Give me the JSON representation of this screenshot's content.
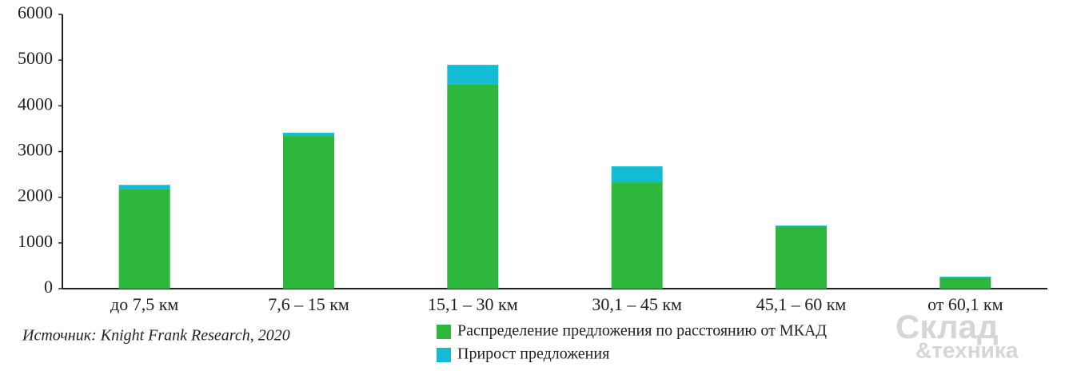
{
  "chart_data": {
    "type": "stacked-bar",
    "categories": [
      "до 7,5 км",
      "7,6 – 15 км",
      "15,1 – 30 км",
      "30,1 – 45 км",
      "45,1 – 60 км",
      "от 60,1 км"
    ],
    "series": [
      {
        "name": "Распределение предложения по расстоянию от МКАД",
        "color": "#2db83d",
        "values": [
          2180,
          3340,
          4475,
          2325,
          1365,
          245
        ]
      },
      {
        "name": "Прирост предложения",
        "color": "#13bcd2",
        "values": [
          90,
          70,
          420,
          350,
          15,
          15
        ]
      }
    ],
    "ylim": [
      0,
      6000
    ],
    "yticks": [
      0,
      1000,
      2000,
      3000,
      4000,
      5000,
      6000
    ],
    "grid": false,
    "source": "Источник: Knight Frank Research, 2020",
    "watermark": [
      "Склад",
      "&техника"
    ]
  }
}
